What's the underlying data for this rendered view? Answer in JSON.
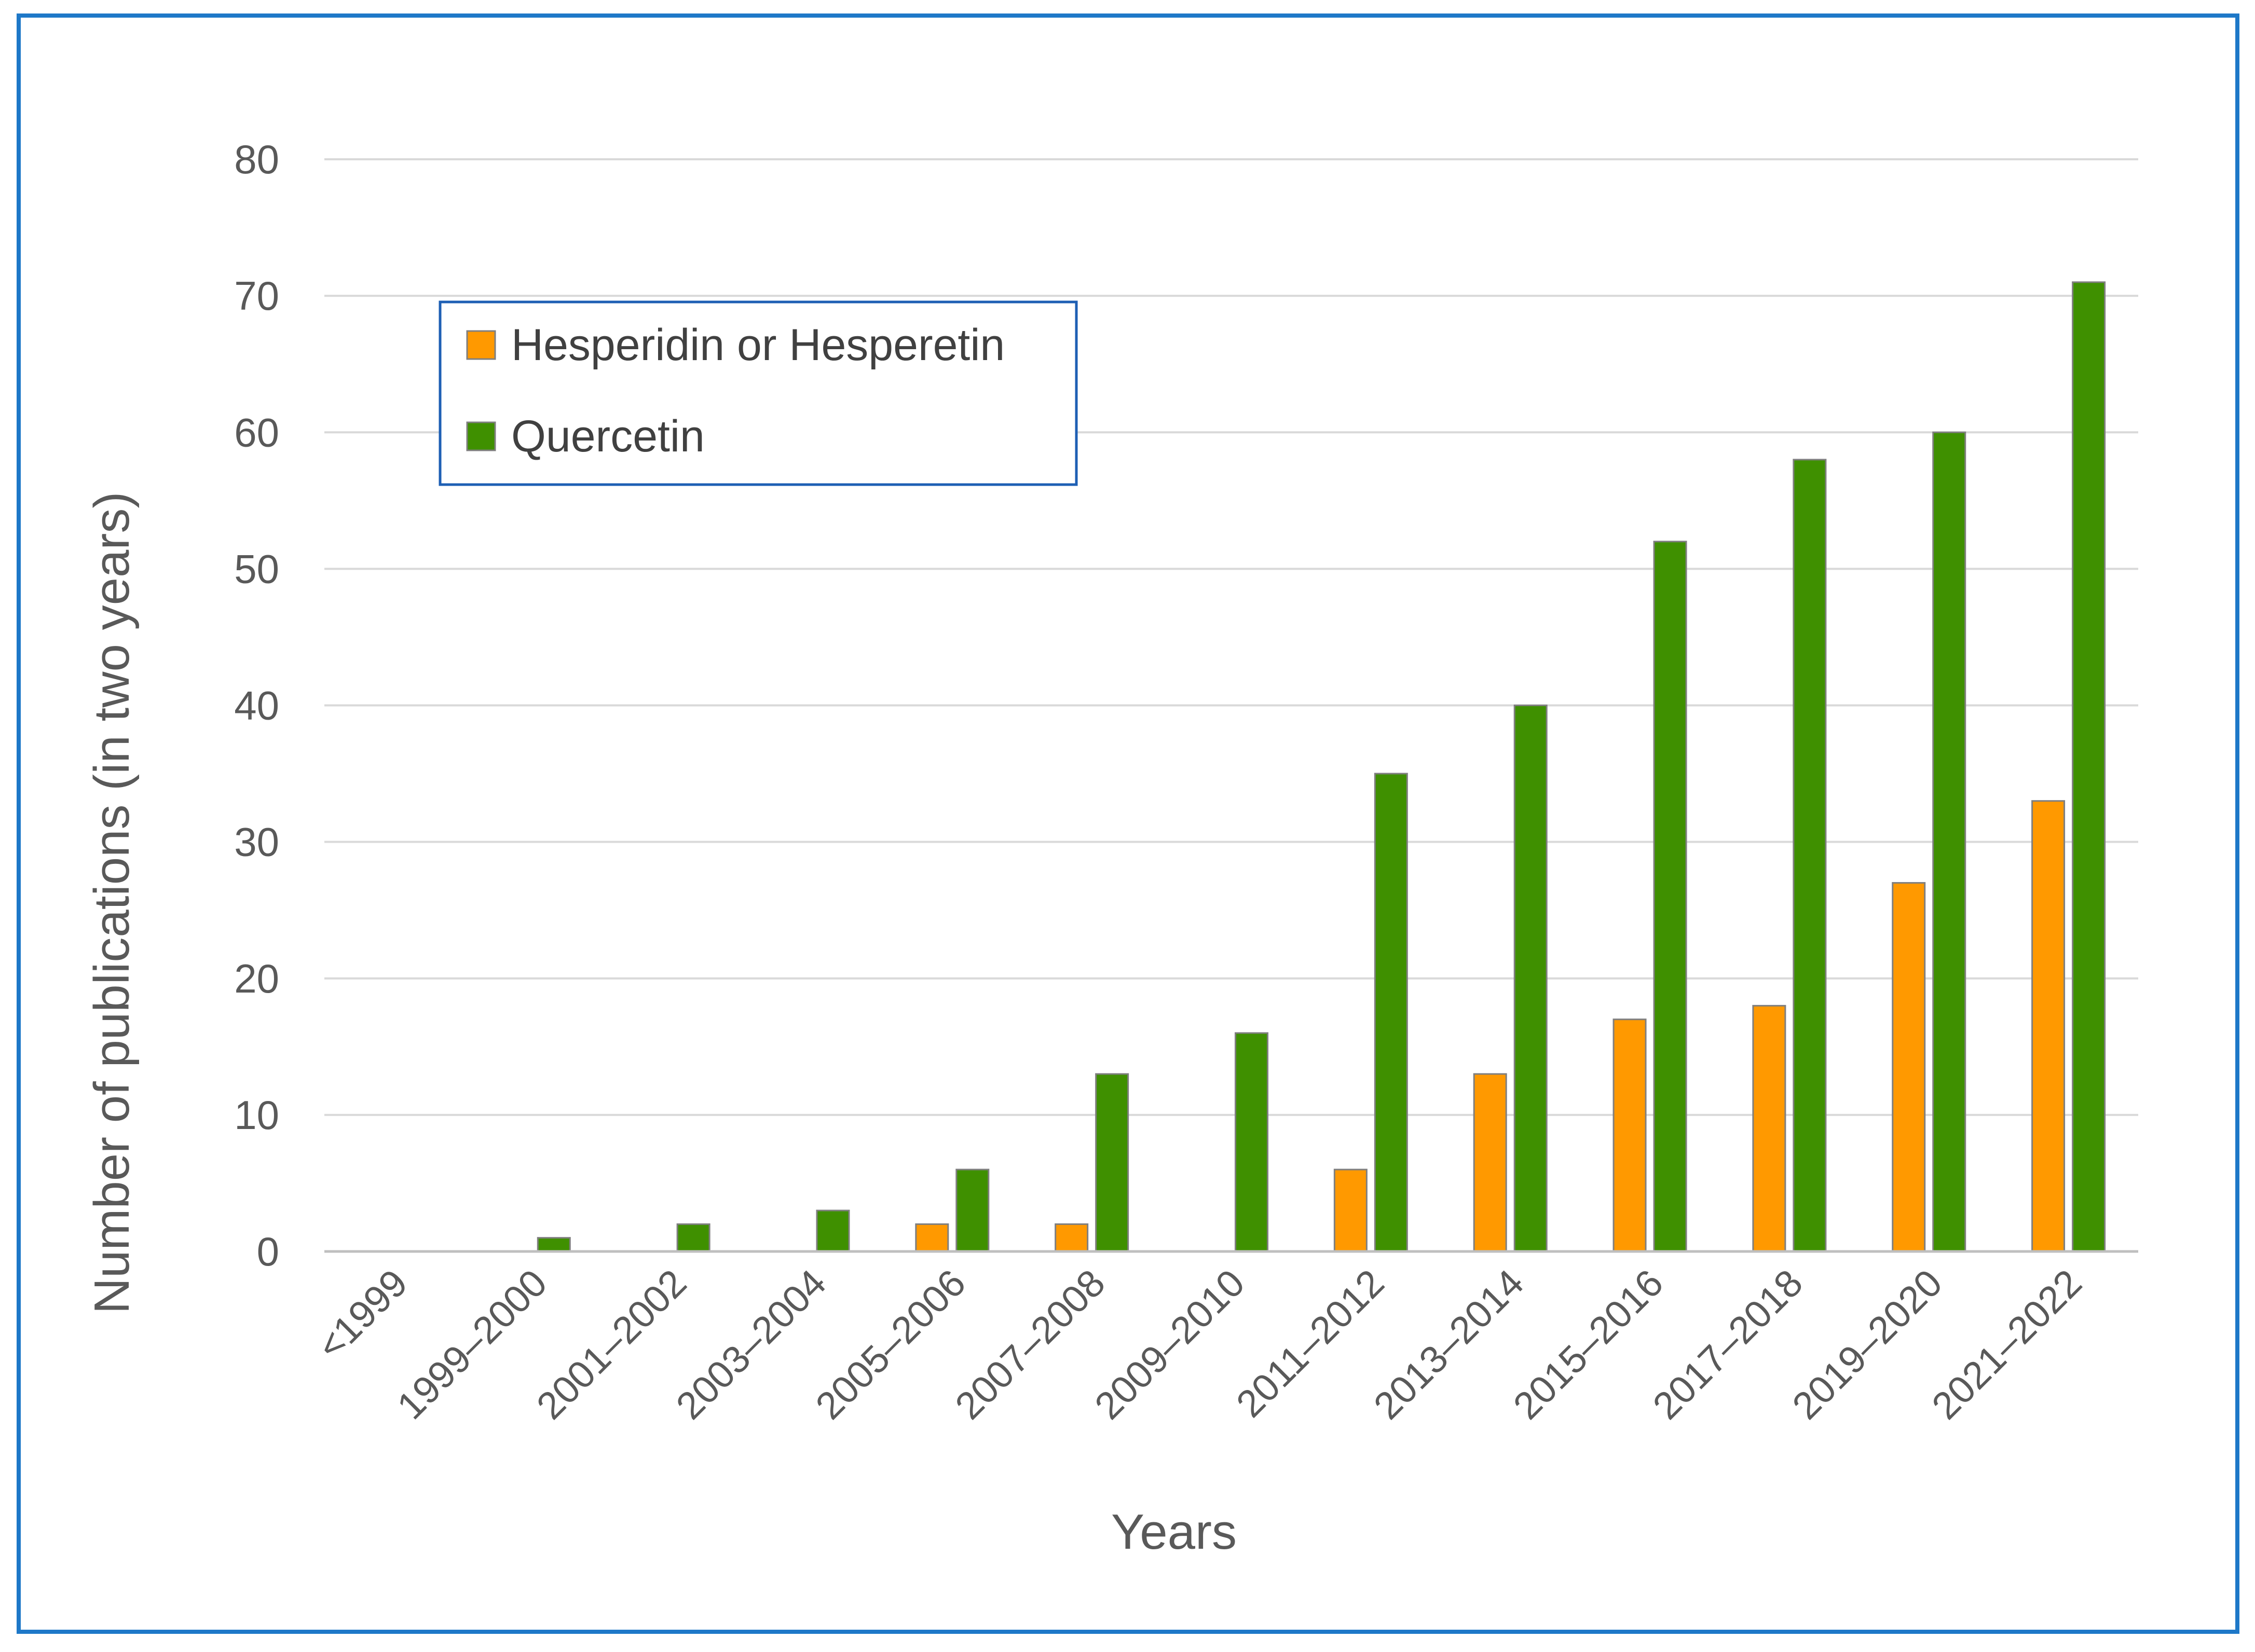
{
  "chart_data": {
    "type": "bar",
    "title": "",
    "xlabel": "Years",
    "ylabel": "Number of publications (in two years)",
    "ylim": [
      0,
      80
    ],
    "yticks": [
      0,
      10,
      20,
      30,
      40,
      50,
      60,
      70,
      80
    ],
    "grid": true,
    "legend_position": "top-left",
    "categories": [
      "<1999",
      "1999–2000",
      "2001–2002",
      "2003–2004",
      "2005–2006",
      "2007–2008",
      "2009–2010",
      "2011–2012",
      "2013–2014",
      "2015–2016",
      "2017–2018",
      "2019–2020",
      "2021–2022"
    ],
    "series": [
      {
        "name": "Hesperidin or Hesperetin",
        "color": "#FF9900",
        "values": [
          0,
          0,
          0,
          0,
          2,
          2,
          0,
          6,
          13,
          17,
          18,
          27,
          33
        ]
      },
      {
        "name": "Quercetin",
        "color": "#3F9000",
        "values": [
          0,
          1,
          2,
          3,
          6,
          13,
          16,
          35,
          40,
          52,
          58,
          60,
          71
        ]
      }
    ],
    "colors": {
      "frame": "#1E78C8",
      "legend_border": "#1E5FB4",
      "grid": "#D9D9D9",
      "axis_line": "#BFBFBF"
    }
  }
}
